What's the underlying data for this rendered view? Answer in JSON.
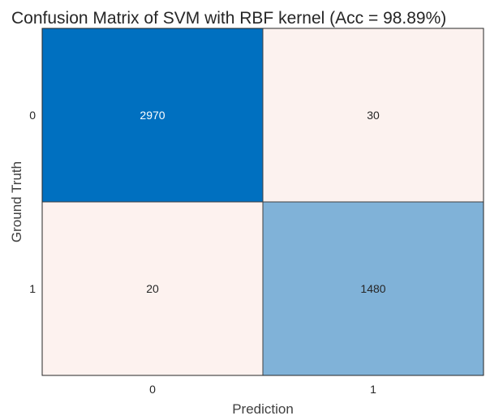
{
  "chart_data": {
    "type": "heatmap",
    "title": "Confusion Matrix of SVM with RBF kernel (Acc = 98.89%)",
    "xlabel": "Prediction",
    "ylabel": "Ground Truth",
    "x_categories": [
      "0",
      "1"
    ],
    "y_categories": [
      "0",
      "1"
    ],
    "matrix": [
      [
        2970,
        30
      ],
      [
        20,
        1480
      ]
    ],
    "cell_labels": [
      [
        "2970",
        "30"
      ],
      [
        "20",
        "1480"
      ]
    ],
    "colormap": {
      "low": "#fdf2ef",
      "high": "#0070c0"
    },
    "text_colors": {
      "on_dark": "#ffffff",
      "on_light": "#262626"
    },
    "grid": false,
    "colorbar": false
  }
}
